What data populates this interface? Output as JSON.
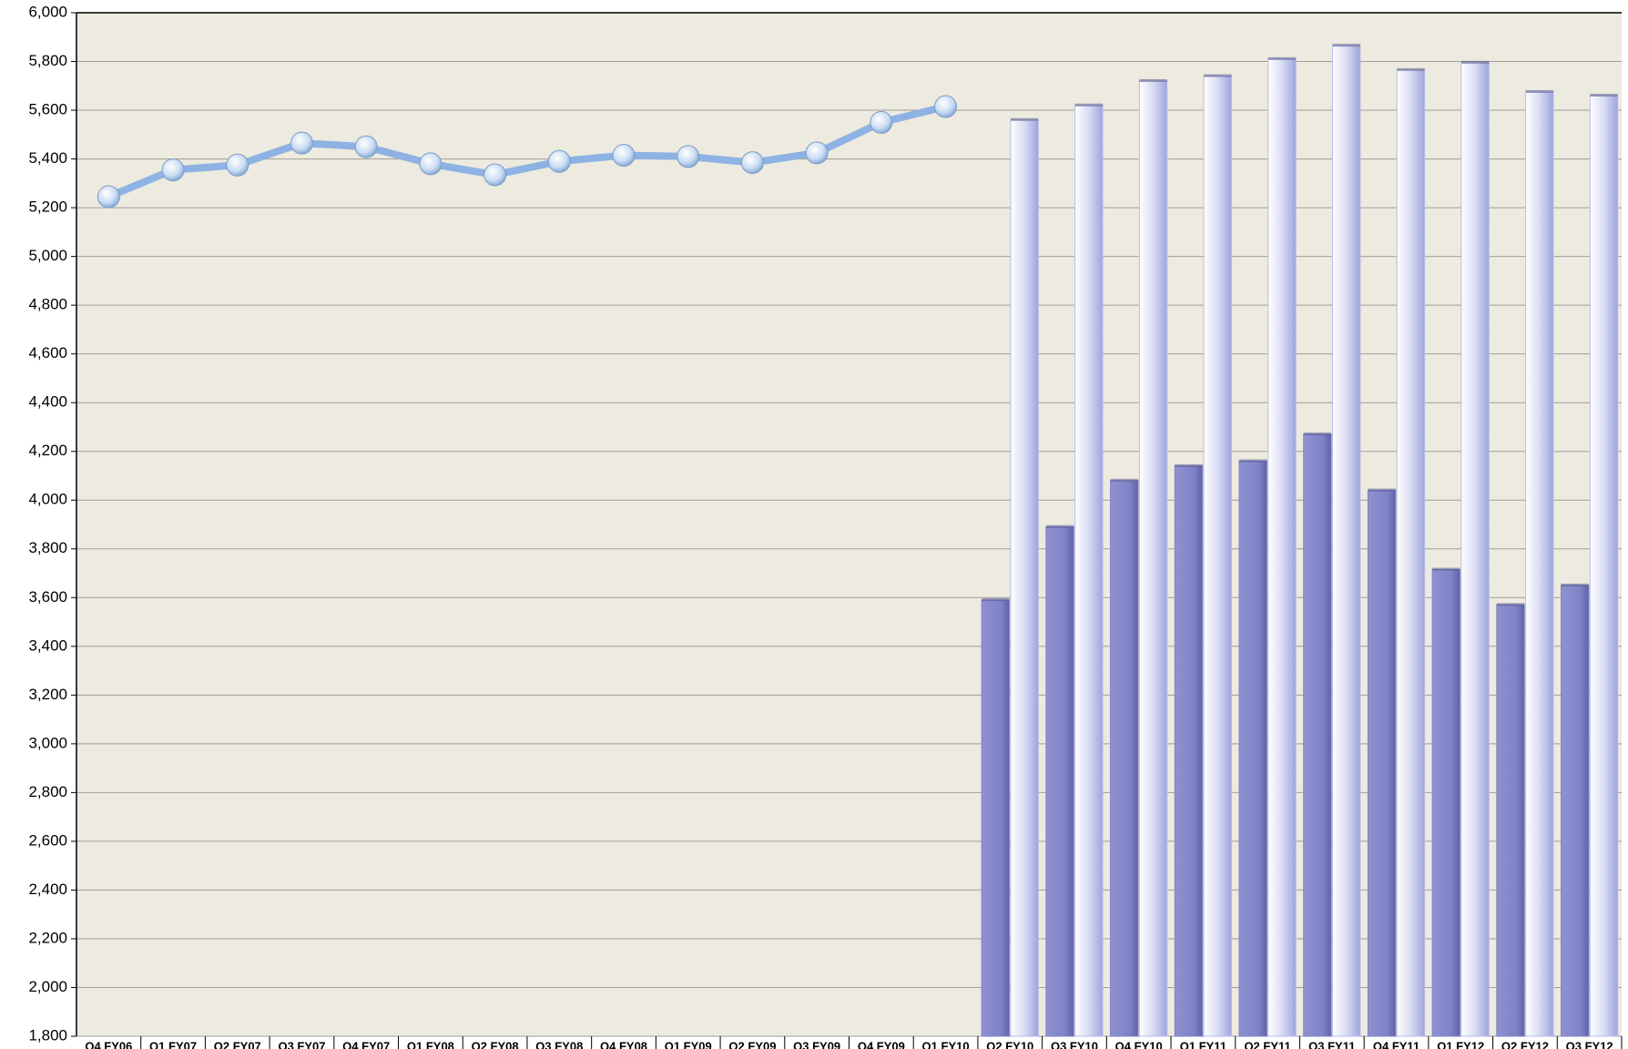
{
  "chart_data": {
    "type": "combo",
    "categories": [
      "Q4 FY06",
      "Q1 FY07",
      "Q2 FY07",
      "Q3 FY07",
      "Q4 FY07",
      "Q1 FY08",
      "Q2 FY08",
      "Q3 FY08",
      "Q4 FY08",
      "Q1 FY09",
      "Q2 FY09",
      "Q3 FY09",
      "Q4 FY09",
      "Q1 FY10",
      "Q2 FY10",
      "Q3 FY10",
      "Q4 FY10",
      "Q1 FY11",
      "Q2 FY11",
      "Q3 FY11",
      "Q4 FY11",
      "Q1 FY12",
      "Q2 FY12",
      "Q3 FY12"
    ],
    "series": [
      {
        "type": "line",
        "color": "#8db2e3",
        "values": [
          5245,
          5355,
          5375,
          5465,
          5450,
          5380,
          5335,
          5390,
          5415,
          5410,
          5385,
          5425,
          5550,
          5615,
          null,
          null,
          null,
          null,
          null,
          null,
          null,
          null,
          null,
          null
        ]
      },
      {
        "type": "bar",
        "color": "#7f82c6",
        "values": [
          null,
          null,
          null,
          null,
          null,
          null,
          null,
          null,
          null,
          null,
          null,
          null,
          null,
          null,
          3590,
          3890,
          4080,
          4140,
          4160,
          4270,
          4040,
          3715,
          3570,
          3650
        ]
      },
      {
        "type": "bar",
        "color": "#b7bde8",
        "values": [
          null,
          null,
          null,
          null,
          null,
          null,
          null,
          null,
          null,
          null,
          null,
          null,
          null,
          null,
          5560,
          5620,
          5720,
          5740,
          5810,
          5865,
          5765,
          5795,
          5675,
          5660
        ]
      }
    ],
    "ylim": [
      1800,
      6000
    ],
    "yticks": [
      {
        "value": 1800,
        "label": "1,800"
      },
      {
        "value": 2000,
        "label": "2,000"
      },
      {
        "value": 2200,
        "label": "2,200"
      },
      {
        "value": 2400,
        "label": "2,400"
      },
      {
        "value": 2600,
        "label": "2,600"
      },
      {
        "value": 2800,
        "label": "2,800"
      },
      {
        "value": 3000,
        "label": "3,000"
      },
      {
        "value": 3200,
        "label": "3,200"
      },
      {
        "value": 3400,
        "label": "3,400"
      },
      {
        "value": 3600,
        "label": "3,600"
      },
      {
        "value": 3800,
        "label": "3,800"
      },
      {
        "value": 4000,
        "label": "4,000"
      },
      {
        "value": 4200,
        "label": "4,200"
      },
      {
        "value": 4400,
        "label": "4,400"
      },
      {
        "value": 4600,
        "label": "4,600"
      },
      {
        "value": 4800,
        "label": "4,800"
      },
      {
        "value": 5000,
        "label": "5,000"
      },
      {
        "value": 5200,
        "label": "5,200"
      },
      {
        "value": 5400,
        "label": "5,400"
      },
      {
        "value": 5600,
        "label": "5,600"
      },
      {
        "value": 5800,
        "label": "5,800"
      },
      {
        "value": 6000,
        "label": "6,000"
      }
    ],
    "grid": true
  }
}
